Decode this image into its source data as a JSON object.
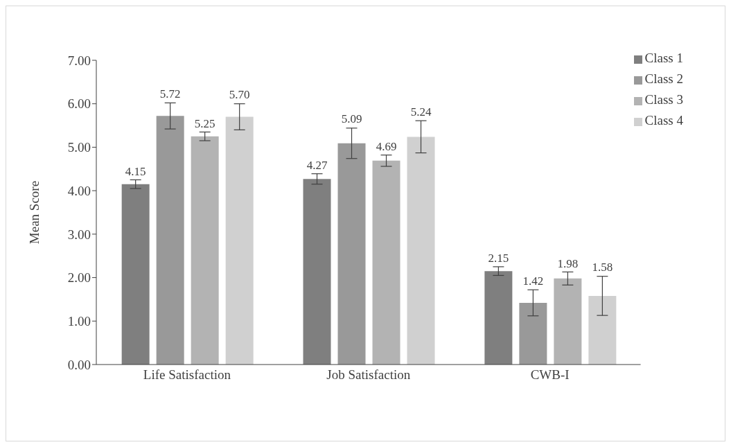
{
  "chart_data": {
    "type": "bar",
    "ylabel": "Mean Score",
    "categories": [
      "Life Satisfaction",
      "Job Satisfaction",
      "CWB-I"
    ],
    "series": [
      {
        "name": "Class 1",
        "color": "#7f7f7f",
        "values": [
          4.15,
          4.27,
          2.15
        ],
        "value_labels": [
          "4.15",
          "4.27",
          "2.15"
        ],
        "errors": [
          0.1,
          0.12,
          0.1
        ]
      },
      {
        "name": "Class 2",
        "color": "#999999",
        "values": [
          5.72,
          5.09,
          1.42
        ],
        "value_labels": [
          "5.72",
          "5.09",
          "1.42"
        ],
        "errors": [
          0.3,
          0.35,
          0.3
        ]
      },
      {
        "name": "Class 3",
        "color": "#b3b3b3",
        "values": [
          5.25,
          4.69,
          1.98
        ],
        "value_labels": [
          "5.25",
          "4.69",
          "1.98"
        ],
        "errors": [
          0.1,
          0.13,
          0.15
        ]
      },
      {
        "name": "Class 4",
        "color": "#d0d0d0",
        "values": [
          5.7,
          5.24,
          1.58
        ],
        "value_labels": [
          "5.70",
          "5.24",
          "1.58"
        ],
        "errors": [
          0.3,
          0.37,
          0.45
        ]
      }
    ],
    "ylim": [
      0,
      7
    ],
    "yticks": [
      {
        "value": 0,
        "label": "0.00"
      },
      {
        "value": 1,
        "label": "1.00"
      },
      {
        "value": 2,
        "label": "2.00"
      },
      {
        "value": 3,
        "label": "3.00"
      },
      {
        "value": 4,
        "label": "4.00"
      },
      {
        "value": 5,
        "label": "5.00"
      },
      {
        "value": 6,
        "label": "6.00"
      },
      {
        "value": 7,
        "label": "7.00"
      }
    ],
    "grid": false,
    "legend": "top right"
  }
}
